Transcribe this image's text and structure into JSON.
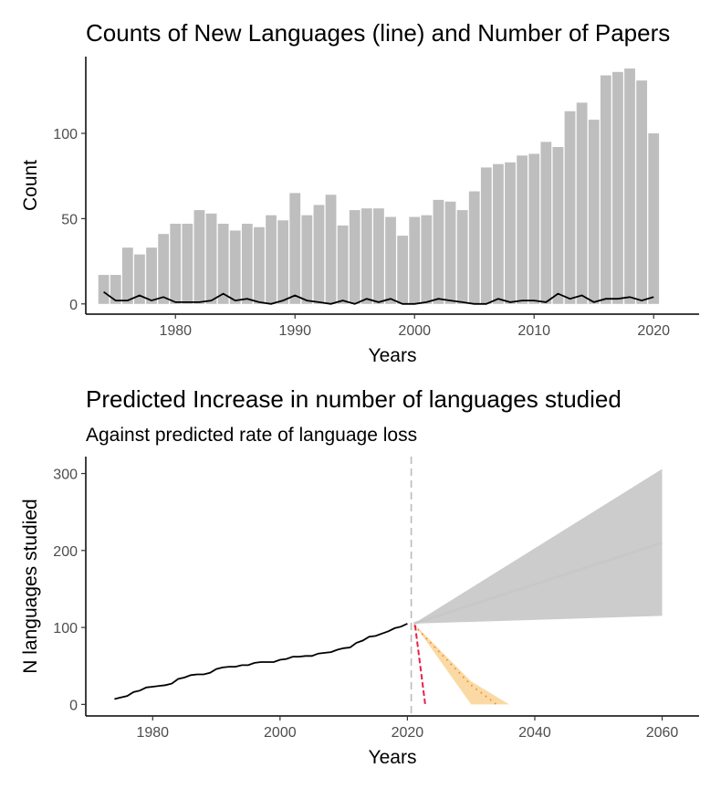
{
  "chart_data": [
    {
      "type": "bar",
      "title": "Counts of New Languages (line) and Number of Papers",
      "xlabel": "Years",
      "ylabel": "Count",
      "xlim": [
        1972.5,
        2023.8
      ],
      "ylim": [
        -6,
        145
      ],
      "xticks": [
        1980,
        1990,
        2000,
        2010,
        2020
      ],
      "yticks": [
        0,
        50,
        100
      ],
      "bar_color": "#bebebe",
      "line_color": "#000000",
      "series": [
        {
          "name": "Number of Papers",
          "type": "bar",
          "x": [
            1974,
            1975,
            1976,
            1977,
            1978,
            1979,
            1980,
            1981,
            1982,
            1983,
            1984,
            1985,
            1986,
            1987,
            1988,
            1989,
            1990,
            1991,
            1992,
            1993,
            1994,
            1995,
            1996,
            1997,
            1998,
            1999,
            2000,
            2001,
            2002,
            2003,
            2004,
            2005,
            2006,
            2007,
            2008,
            2009,
            2010,
            2011,
            2012,
            2013,
            2014,
            2015,
            2016,
            2017,
            2018,
            2019,
            2020
          ],
          "values": [
            17,
            17,
            33,
            29,
            33,
            41,
            47,
            47,
            55,
            53,
            47,
            43,
            47,
            45,
            52,
            49,
            65,
            52,
            58,
            64,
            46,
            55,
            56,
            56,
            51,
            40,
            51,
            52,
            61,
            60,
            55,
            66,
            80,
            82,
            83,
            87,
            88,
            95,
            92,
            113,
            118,
            108,
            134,
            136,
            138,
            131,
            100
          ]
        },
        {
          "name": "Counts of New Languages",
          "type": "line",
          "x": [
            1974,
            1975,
            1976,
            1977,
            1978,
            1979,
            1980,
            1981,
            1982,
            1983,
            1984,
            1985,
            1986,
            1987,
            1988,
            1989,
            1990,
            1991,
            1992,
            1993,
            1994,
            1995,
            1996,
            1997,
            1998,
            1999,
            2000,
            2001,
            2002,
            2003,
            2004,
            2005,
            2006,
            2007,
            2008,
            2009,
            2010,
            2011,
            2012,
            2013,
            2014,
            2015,
            2016,
            2017,
            2018,
            2019,
            2020
          ],
          "values": [
            7,
            2,
            2,
            5,
            2,
            4,
            1,
            1,
            1,
            2,
            6,
            2,
            3,
            1,
            0,
            2,
            5,
            2,
            1,
            0,
            2,
            0,
            3,
            1,
            3,
            0,
            0,
            1,
            3,
            2,
            1,
            0,
            0,
            3,
            1,
            2,
            2,
            1,
            6,
            3,
            5,
            1,
            3,
            3,
            4,
            2,
            4
          ]
        }
      ]
    },
    {
      "type": "line",
      "title": "Predicted Increase in number of languages studied",
      "subtitle": "Against predicted rate of language loss",
      "xlabel": "Years",
      "ylabel": "N languages studied",
      "xlim": [
        1969.5,
        2065.8
      ],
      "ylim": [
        -15,
        322
      ],
      "xticks": [
        1980,
        2000,
        2020,
        2040,
        2060
      ],
      "yticks": [
        0,
        100,
        200,
        300
      ],
      "vline_x": 2020.6,
      "series": [
        {
          "type": "line",
          "color": "#000000",
          "x": [
            1974,
            1975,
            1976,
            1977,
            1978,
            1979,
            1980,
            1981,
            1982,
            1983,
            1984,
            1985,
            1986,
            1987,
            1988,
            1989,
            1990,
            1991,
            1992,
            1993,
            1994,
            1995,
            1996,
            1997,
            1998,
            1999,
            2000,
            2001,
            2002,
            2003,
            2004,
            2005,
            2006,
            2007,
            2008,
            2009,
            2010,
            2011,
            2012,
            2013,
            2014,
            2015,
            2016,
            2017,
            2018,
            2019,
            2020
          ],
          "values": [
            7,
            9,
            11,
            16,
            18,
            22,
            23,
            24,
            25,
            27,
            33,
            35,
            38,
            39,
            39,
            41,
            46,
            48,
            49,
            49,
            51,
            51,
            54,
            55,
            55,
            55,
            58,
            59,
            62,
            62,
            63,
            63,
            66,
            67,
            68,
            71,
            73,
            74,
            80,
            83,
            88,
            89,
            92,
            95,
            99,
            101,
            105
          ]
        },
        {
          "type": "ribbon",
          "fill": "#cccccc",
          "x": [
            2021,
            2060
          ],
          "lower": [
            105,
            115
          ],
          "upper": [
            105,
            306
          ]
        },
        {
          "type": "line",
          "color": "#c8c8c8",
          "x": [
            2021,
            2060
          ],
          "values": [
            105,
            210
          ]
        },
        {
          "type": "ribbon",
          "fill": "#fbd9a4",
          "x": [
            2021,
            2030,
            2036
          ],
          "lower": [
            105,
            0,
            0
          ],
          "upper": [
            105,
            30,
            0
          ]
        },
        {
          "type": "line",
          "style": "dotted",
          "color": "#e78c38",
          "x": [
            2021,
            2030,
            2034
          ],
          "values": [
            103,
            25,
            0
          ]
        },
        {
          "type": "line",
          "style": "dashed",
          "color": "#e8214a",
          "x": [
            2021.2,
            2022.8
          ],
          "values": [
            103,
            0
          ]
        }
      ]
    }
  ]
}
